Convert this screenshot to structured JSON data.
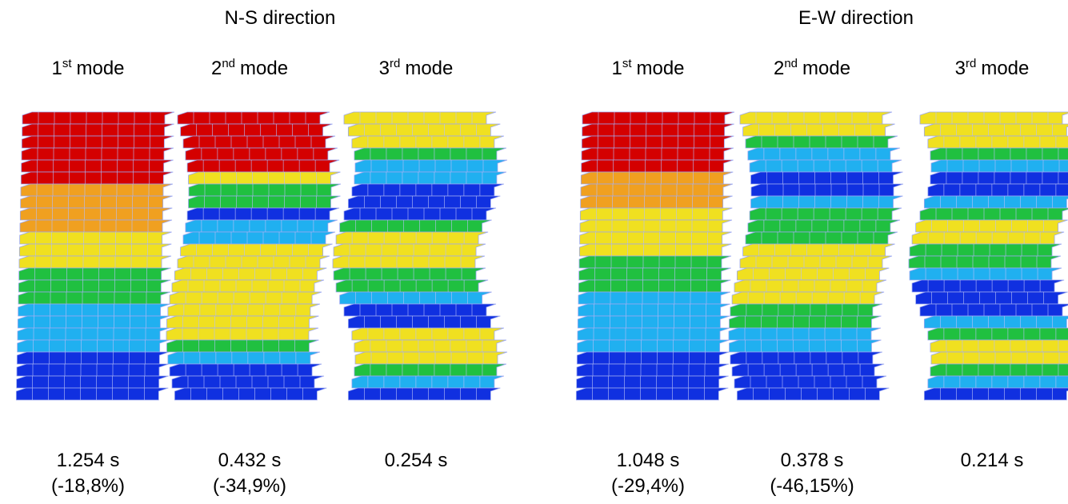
{
  "groups": [
    {
      "title": "N-S direction",
      "modes": [
        {
          "number": "1",
          "suffix": "st",
          "word": "mode",
          "period": "1.254 s",
          "change": "(-18,8%)"
        },
        {
          "number": "2",
          "suffix": "nd",
          "word": "mode",
          "period": "0.432 s",
          "change": "(-34,9%)"
        },
        {
          "number": "3",
          "suffix": "rd",
          "word": "mode",
          "period": "0.254 s"
        }
      ]
    },
    {
      "title": "E-W direction",
      "modes": [
        {
          "number": "1",
          "suffix": "st",
          "word": "mode",
          "period": "1.048 s",
          "change": "(-29,4%)"
        },
        {
          "number": "2",
          "suffix": "nd",
          "word": "mode",
          "period": "0.378 s",
          "change": "(-46,15%)"
        },
        {
          "number": "3",
          "suffix": "rd",
          "word": "mode",
          "period": "0.214 s"
        }
      ]
    }
  ]
}
